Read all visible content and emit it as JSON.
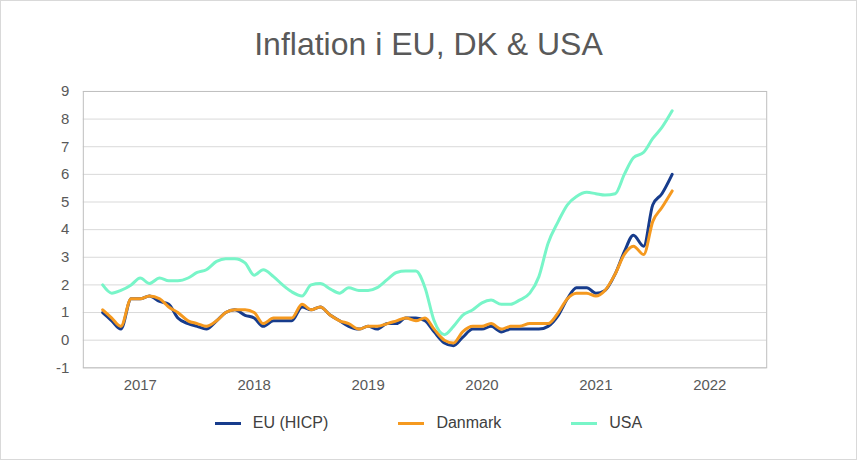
{
  "chart_data": {
    "type": "line",
    "title": "Inflation i EU, DK & USA",
    "x": [
      2016.67,
      2016.75,
      2016.83,
      2016.92,
      2017,
      2017.08,
      2017.17,
      2017.25,
      2017.33,
      2017.42,
      2017.5,
      2017.58,
      2017.67,
      2017.75,
      2017.83,
      2017.92,
      2018,
      2018.08,
      2018.17,
      2018.25,
      2018.33,
      2018.42,
      2018.5,
      2018.58,
      2018.67,
      2018.75,
      2018.83,
      2018.92,
      2019,
      2019.08,
      2019.17,
      2019.25,
      2019.33,
      2019.42,
      2019.5,
      2019.58,
      2019.67,
      2019.75,
      2019.83,
      2019.92,
      2020,
      2020.08,
      2020.17,
      2020.25,
      2020.33,
      2020.42,
      2020.5,
      2020.58,
      2020.67,
      2020.75,
      2020.83,
      2020.92,
      2021,
      2021.08,
      2021.17,
      2021.25,
      2021.33,
      2021.42,
      2021.5,
      2021.58,
      2021.67
    ],
    "series": [
      {
        "name": "EU (HICP)",
        "color": "#173c8c",
        "values": [
          1.0,
          0.7,
          0.4,
          1.5,
          1.5,
          1.6,
          1.4,
          1.3,
          0.8,
          0.6,
          0.5,
          0.4,
          0.7,
          1.0,
          1.1,
          0.9,
          0.8,
          0.5,
          0.7,
          0.7,
          0.7,
          1.2,
          1.1,
          1.2,
          0.9,
          0.7,
          0.5,
          0.4,
          0.5,
          0.4,
          0.6,
          0.6,
          0.8,
          0.8,
          0.7,
          0.3,
          -0.1,
          -0.2,
          0.1,
          0.4,
          0.4,
          0.5,
          0.3,
          0.4,
          0.4,
          0.4,
          0.4,
          0.5,
          0.9,
          1.5,
          1.9,
          1.9,
          1.7,
          1.8,
          2.4,
          3.2,
          3.8,
          3.4,
          4.9,
          5.3,
          6.0
        ]
      },
      {
        "name": "Danmark",
        "color": "#f5991f",
        "values": [
          1.1,
          0.8,
          0.5,
          1.5,
          1.5,
          1.6,
          1.5,
          1.2,
          1.0,
          0.7,
          0.6,
          0.5,
          0.7,
          1.0,
          1.1,
          1.1,
          1.0,
          0.6,
          0.8,
          0.8,
          0.8,
          1.3,
          1.1,
          1.2,
          0.9,
          0.7,
          0.6,
          0.4,
          0.5,
          0.5,
          0.6,
          0.7,
          0.8,
          0.7,
          0.8,
          0.4,
          0.0,
          -0.1,
          0.3,
          0.5,
          0.5,
          0.6,
          0.4,
          0.5,
          0.5,
          0.6,
          0.6,
          0.6,
          1.0,
          1.5,
          1.7,
          1.7,
          1.6,
          1.8,
          2.4,
          3.1,
          3.4,
          3.1,
          4.3,
          4.8,
          5.4
        ]
      },
      {
        "name": "USA",
        "color": "#78f5c8",
        "values": [
          2.0,
          1.7,
          1.8,
          2.0,
          2.25,
          2.05,
          2.25,
          2.15,
          2.15,
          2.25,
          2.45,
          2.55,
          2.85,
          2.95,
          2.95,
          2.8,
          2.35,
          2.55,
          2.3,
          2.0,
          1.75,
          1.6,
          2.0,
          2.05,
          1.85,
          1.7,
          1.9,
          1.8,
          1.8,
          1.9,
          2.2,
          2.45,
          2.5,
          2.5,
          1.9,
          0.7,
          0.2,
          0.5,
          0.9,
          1.1,
          1.35,
          1.45,
          1.3,
          1.3,
          1.45,
          1.7,
          2.3,
          3.5,
          4.3,
          4.9,
          5.2,
          5.35,
          5.3,
          5.25,
          5.3,
          6.0,
          6.6,
          6.8,
          7.3,
          7.7,
          8.3
        ]
      }
    ],
    "xlim": [
      2016.5,
      2022.5
    ],
    "xticks": [
      2017,
      2018,
      2019,
      2020,
      2021,
      2022
    ],
    "ylim": [
      -1,
      9
    ],
    "yticks": [
      -1,
      0,
      1,
      2,
      3,
      4,
      5,
      6,
      7,
      8,
      9
    ],
    "grid": true,
    "legend": "bottom"
  }
}
